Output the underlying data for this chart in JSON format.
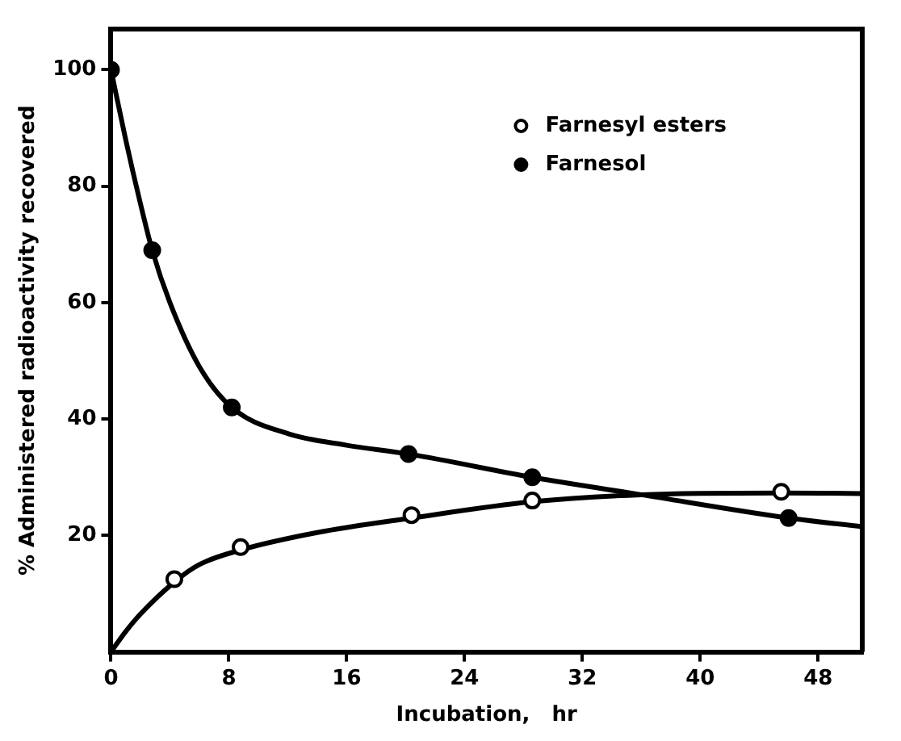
{
  "chart_data": {
    "type": "scatter",
    "xlabel": "Incubation,   hr",
    "ylabel": "% Administered radioactivity recovered",
    "xlim": [
      0,
      51
    ],
    "ylim": [
      0,
      107
    ],
    "xticks": [
      0,
      8,
      16,
      24,
      32,
      40,
      48
    ],
    "yticks": [
      20,
      40,
      60,
      80,
      100
    ],
    "grid": false,
    "legend": "top right",
    "series": [
      {
        "name": "Farnesyl esters",
        "marker": "circle",
        "color": "#ffffff",
        "x": [
          4.3,
          8.8,
          20.4,
          28.6,
          45.5
        ],
        "values": [
          12.5,
          18,
          23.5,
          26,
          27.5
        ]
      },
      {
        "name": "Farnesol",
        "marker": "circle",
        "color": "#000000",
        "x": [
          0,
          2.8,
          8.2,
          20.2,
          28.6,
          46
        ],
        "values": [
          100,
          69,
          42,
          34,
          30,
          23
        ]
      },
      {
        "type": "line",
        "marker": "none",
        "color": "#000000",
        "x": [
          0,
          1,
          2,
          4.3,
          6,
          8.8,
          14,
          20.4,
          28.6,
          36,
          45.5,
          51
        ],
        "values": [
          0,
          3.5,
          6.5,
          12,
          15,
          17.5,
          20.5,
          23,
          25.8,
          27,
          27.3,
          27.2
        ]
      },
      {
        "type": "line",
        "marker": "none",
        "color": "#000000",
        "x": [
          0,
          1,
          2,
          2.8,
          4,
          6,
          8.2,
          12,
          16,
          20.2,
          28.6,
          36,
          46,
          51
        ],
        "values": [
          100,
          88,
          77,
          69,
          60,
          49,
          42,
          37.5,
          35.5,
          34,
          30,
          27,
          23,
          21.5
        ]
      }
    ]
  }
}
